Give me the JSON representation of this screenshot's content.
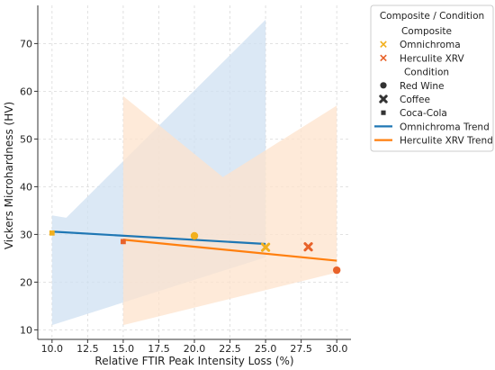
{
  "chart_data": {
    "type": "scatter",
    "xlabel": "Relative FTIR Peak Intensity Loss (%)",
    "ylabel": "Vickers Microhardness (HV)",
    "xlim": [
      9.0,
      31.0
    ],
    "ylim": [
      8.0,
      78.0
    ],
    "xticks": [
      10.0,
      12.5,
      15.0,
      17.5,
      20.0,
      22.5,
      25.0,
      27.5,
      30.0
    ],
    "xtick_labels": [
      "10.0",
      "12.5",
      "15.0",
      "17.5",
      "20.0",
      "22.5",
      "25.0",
      "27.5",
      "30.0"
    ],
    "yticks": [
      10,
      20,
      30,
      40,
      50,
      60,
      70
    ],
    "ytick_labels": [
      "10",
      "20",
      "30",
      "40",
      "50",
      "60",
      "70"
    ],
    "grid": true,
    "legend_position": "outside-right",
    "colors": {
      "omnichroma": "#f2b01e",
      "herculite": "#e8622a",
      "omni_trend": "#1f77b4",
      "herc_trend": "#ff7f0e",
      "omni_band": "#cfe0f1",
      "herc_band": "#fde3cc"
    },
    "points": [
      {
        "series": "Omnichroma",
        "condition": "Red Wine",
        "x": 20.0,
        "y": 29.7
      },
      {
        "series": "Omnichroma",
        "condition": "Coffee",
        "x": 25.0,
        "y": 27.3
      },
      {
        "series": "Omnichroma",
        "condition": "Coca-Cola",
        "x": 10.0,
        "y": 30.3
      },
      {
        "series": "Herculite XRV",
        "condition": "Red Wine",
        "x": 30.0,
        "y": 22.5
      },
      {
        "series": "Herculite XRV",
        "condition": "Coffee",
        "x": 28.0,
        "y": 27.4
      },
      {
        "series": "Herculite XRV",
        "condition": "Coca-Cola",
        "x": 15.0,
        "y": 28.5
      }
    ],
    "trends": [
      {
        "name": "Omnichroma Trend",
        "x": [
          10.0,
          25.0
        ],
        "y": [
          30.6,
          28.0
        ]
      },
      {
        "name": "Herculite XRV Trend",
        "x": [
          15.0,
          30.0
        ],
        "y": [
          28.9,
          24.5
        ]
      }
    ],
    "bands": [
      {
        "series": "Omnichroma",
        "upper": [
          [
            10.0,
            34.0
          ],
          [
            11.0,
            33.5
          ],
          [
            25.0,
            75.0
          ]
        ],
        "lower": [
          [
            10.0,
            11.0
          ],
          [
            25.0,
            25.2
          ]
        ]
      },
      {
        "series": "Herculite XRV",
        "upper": [
          [
            15.0,
            59.0
          ],
          [
            22.0,
            42.0
          ],
          [
            30.0,
            57.0
          ]
        ],
        "lower": [
          [
            15.0,
            11.0
          ],
          [
            30.0,
            22.0
          ]
        ]
      }
    ],
    "legend": {
      "title": "Composite / Condition",
      "entries": [
        {
          "kind": "header",
          "label": "Composite"
        },
        {
          "kind": "marker",
          "marker": "x",
          "color": "#f2b01e",
          "label": "Omnichroma"
        },
        {
          "kind": "marker",
          "marker": "x",
          "color": "#e8622a",
          "label": "Herculite XRV"
        },
        {
          "kind": "header",
          "label": "Condition"
        },
        {
          "kind": "marker",
          "marker": "circle",
          "color": "#333333",
          "label": "Red Wine"
        },
        {
          "kind": "marker",
          "marker": "cross",
          "color": "#333333",
          "label": "Coffee"
        },
        {
          "kind": "marker",
          "marker": "square",
          "color": "#333333",
          "label": "Coca-Cola"
        },
        {
          "kind": "line",
          "color": "#1f77b4",
          "label": "Omnichroma Trend"
        },
        {
          "kind": "line",
          "color": "#ff7f0e",
          "label": "Herculite XRV Trend"
        }
      ]
    }
  }
}
